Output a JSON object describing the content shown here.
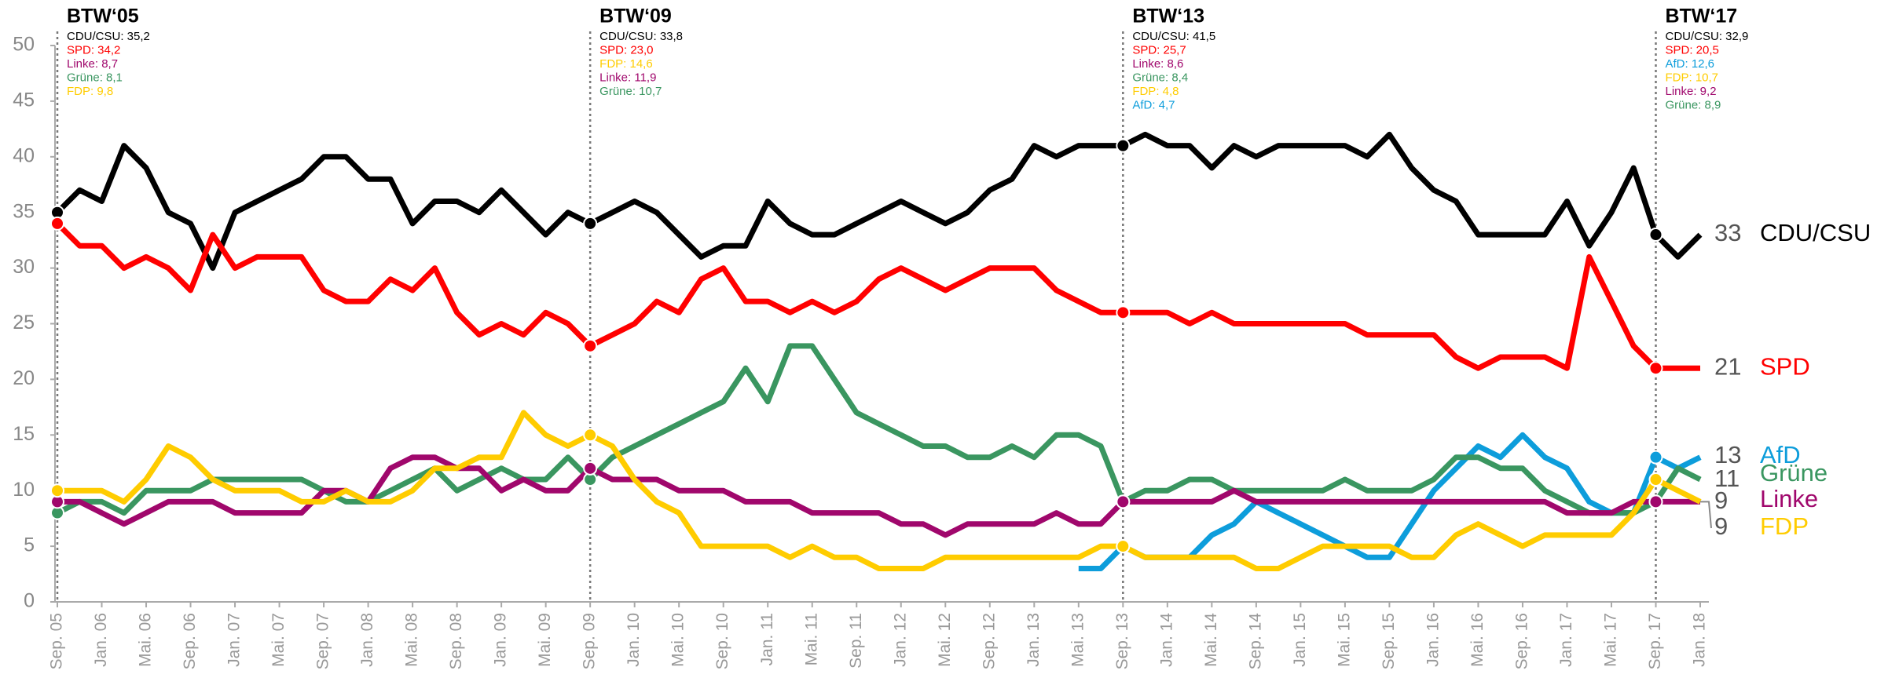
{
  "chart_data": {
    "type": "line",
    "categories": [
      "Sep. 05",
      null,
      "Jan. 06",
      null,
      "Mai. 06",
      null,
      "Sep. 06",
      null,
      "Jan. 07",
      null,
      "Mai. 07",
      null,
      "Sep. 07",
      null,
      "Jan. 08",
      null,
      "Mai. 08",
      null,
      "Sep. 08",
      null,
      "Jan. 09",
      null,
      "Mai. 09",
      null,
      "Sep. 09",
      null,
      "Jan. 10",
      null,
      "Mai. 10",
      null,
      "Sep. 10",
      null,
      "Jan. 11",
      null,
      "Mai. 11",
      null,
      "Sep. 11",
      null,
      "Jan. 12",
      null,
      "Mai. 12",
      null,
      "Sep. 12",
      null,
      "Jan. 13",
      null,
      "Mai. 13",
      null,
      "Sep. 13",
      null,
      "Jan. 14",
      null,
      "Mai. 14",
      null,
      "Sep. 14",
      null,
      "Jan. 15",
      null,
      "Mai. 15",
      null,
      "Sep. 15",
      null,
      "Jan. 16",
      null,
      "Mai. 16",
      null,
      "Sep. 16",
      null,
      "Jan. 17",
      null,
      "Mai. 17",
      null,
      "Sep. 17",
      null,
      "Jan. 18"
    ],
    "series": [
      {
        "name": "CDU/CSU",
        "color": "#000000",
        "values": [
          35,
          37,
          36,
          41,
          39,
          35,
          34,
          30,
          35,
          36,
          37,
          38,
          40,
          40,
          38,
          38,
          34,
          36,
          36,
          35,
          37,
          35,
          33,
          35,
          34,
          35,
          36,
          35,
          33,
          31,
          32,
          32,
          36,
          34,
          33,
          33,
          34,
          35,
          36,
          35,
          34,
          35,
          37,
          38,
          41,
          40,
          41,
          41,
          41,
          42,
          41,
          41,
          39,
          41,
          40,
          41,
          41,
          41,
          41,
          40,
          42,
          39,
          37,
          36,
          33,
          33,
          33,
          33,
          36,
          32,
          35,
          39,
          33,
          31,
          33
        ]
      },
      {
        "name": "SPD",
        "color": "#ff0000",
        "values": [
          34,
          32,
          32,
          30,
          31,
          30,
          28,
          33,
          30,
          31,
          31,
          31,
          28,
          27,
          27,
          29,
          28,
          30,
          26,
          24,
          25,
          24,
          26,
          25,
          23,
          24,
          25,
          27,
          26,
          29,
          30,
          27,
          27,
          26,
          27,
          26,
          27,
          29,
          30,
          29,
          28,
          29,
          30,
          30,
          30,
          28,
          27,
          26,
          26,
          26,
          26,
          25,
          26,
          25,
          25,
          25,
          25,
          25,
          25,
          24,
          24,
          24,
          24,
          22,
          21,
          22,
          22,
          22,
          21,
          31,
          27,
          23,
          21,
          21,
          21
        ]
      },
      {
        "name": "AfD",
        "color": "#0d9ddb",
        "values": [
          null,
          null,
          null,
          null,
          null,
          null,
          null,
          null,
          null,
          null,
          null,
          null,
          null,
          null,
          null,
          null,
          null,
          null,
          null,
          null,
          null,
          null,
          null,
          null,
          null,
          null,
          null,
          null,
          null,
          null,
          null,
          null,
          null,
          null,
          null,
          null,
          null,
          null,
          null,
          null,
          null,
          null,
          null,
          null,
          null,
          null,
          3,
          3,
          5,
          4,
          4,
          4,
          6,
          7,
          9,
          8,
          7,
          6,
          5,
          4,
          4,
          7,
          10,
          12,
          14,
          13,
          15,
          13,
          12,
          9,
          8,
          8,
          13,
          12,
          13
        ]
      },
      {
        "name": "Grüne",
        "color": "#3a9660",
        "values": [
          8,
          9,
          9,
          8,
          10,
          10,
          10,
          11,
          11,
          11,
          11,
          11,
          10,
          9,
          9,
          10,
          11,
          12,
          10,
          11,
          12,
          11,
          11,
          13,
          11,
          13,
          14,
          15,
          16,
          17,
          18,
          21,
          18,
          23,
          23,
          20,
          17,
          16,
          15,
          14,
          14,
          13,
          13,
          14,
          13,
          15,
          15,
          14,
          9,
          10,
          10,
          11,
          11,
          10,
          10,
          10,
          10,
          10,
          11,
          10,
          10,
          10,
          11,
          13,
          13,
          12,
          12,
          10,
          9,
          8,
          8,
          8,
          9,
          12,
          11
        ]
      },
      {
        "name": "Linke",
        "color": "#a0076c",
        "values": [
          9,
          9,
          8,
          7,
          8,
          9,
          9,
          9,
          8,
          8,
          8,
          8,
          10,
          10,
          9,
          12,
          13,
          13,
          12,
          12,
          10,
          11,
          10,
          10,
          12,
          11,
          11,
          11,
          10,
          10,
          10,
          9,
          9,
          9,
          8,
          8,
          8,
          8,
          7,
          7,
          6,
          7,
          7,
          7,
          7,
          8,
          7,
          7,
          9,
          9,
          9,
          9,
          9,
          10,
          9,
          9,
          9,
          9,
          9,
          9,
          9,
          9,
          9,
          9,
          9,
          9,
          9,
          9,
          8,
          8,
          8,
          9,
          9,
          9,
          9
        ]
      },
      {
        "name": "FDP",
        "color": "#ffcc00",
        "values": [
          10,
          10,
          10,
          9,
          11,
          14,
          13,
          11,
          10,
          10,
          10,
          9,
          9,
          10,
          9,
          9,
          10,
          12,
          12,
          13,
          13,
          17,
          15,
          14,
          15,
          14,
          11,
          9,
          8,
          5,
          5,
          5,
          5,
          4,
          5,
          4,
          4,
          3,
          3,
          3,
          4,
          4,
          4,
          4,
          4,
          4,
          4,
          5,
          5,
          4,
          4,
          4,
          4,
          4,
          3,
          3,
          4,
          5,
          5,
          5,
          5,
          4,
          4,
          6,
          7,
          6,
          5,
          6,
          6,
          6,
          6,
          8,
          11,
          10,
          9
        ]
      }
    ],
    "ylim": [
      0,
      50
    ],
    "yticks": [
      0,
      5,
      10,
      15,
      20,
      25,
      30,
      35,
      40,
      45,
      50
    ],
    "elections": [
      {
        "title": "BTW‘05",
        "results": [
          {
            "text": "CDU/CSU: 35,2",
            "color": "#000000"
          },
          {
            "text": "SPD: 34,2",
            "color": "#ff0000"
          },
          {
            "text": "Linke: 8,7",
            "color": "#a0076c"
          },
          {
            "text": "Grüne: 8,1",
            "color": "#3a9660"
          },
          {
            "text": "FDP: 9,8",
            "color": "#ffcc00"
          }
        ]
      },
      {
        "title": "BTW‘09",
        "results": [
          {
            "text": "CDU/CSU: 33,8",
            "color": "#000000"
          },
          {
            "text": "SPD: 23,0",
            "color": "#ff0000"
          },
          {
            "text": "FDP: 14,6",
            "color": "#ffcc00"
          },
          {
            "text": "Linke: 11,9",
            "color": "#a0076c"
          },
          {
            "text": "Grüne: 10,7",
            "color": "#3a9660"
          }
        ]
      },
      {
        "title": "BTW‘13",
        "results": [
          {
            "text": "CDU/CSU: 41,5",
            "color": "#000000"
          },
          {
            "text": "SPD: 25,7",
            "color": "#ff0000"
          },
          {
            "text": "Linke: 8,6",
            "color": "#a0076c"
          },
          {
            "text": "Grüne: 8,4",
            "color": "#3a9660"
          },
          {
            "text": "FDP: 4,8",
            "color": "#ffcc00"
          },
          {
            "text": "AfD: 4,7",
            "color": "#0d9ddb"
          }
        ]
      },
      {
        "title": "BTW‘17",
        "results": [
          {
            "text": "CDU/CSU: 32,9",
            "color": "#000000"
          },
          {
            "text": "SPD: 20,5",
            "color": "#ff0000"
          },
          {
            "text": "AfD: 12,6",
            "color": "#0d9ddb"
          },
          {
            "text": "FDP: 10,7",
            "color": "#ffcc00"
          },
          {
            "text": "Linke: 9,2",
            "color": "#a0076c"
          },
          {
            "text": "Grüne: 8,9",
            "color": "#3a9660"
          }
        ]
      }
    ]
  }
}
